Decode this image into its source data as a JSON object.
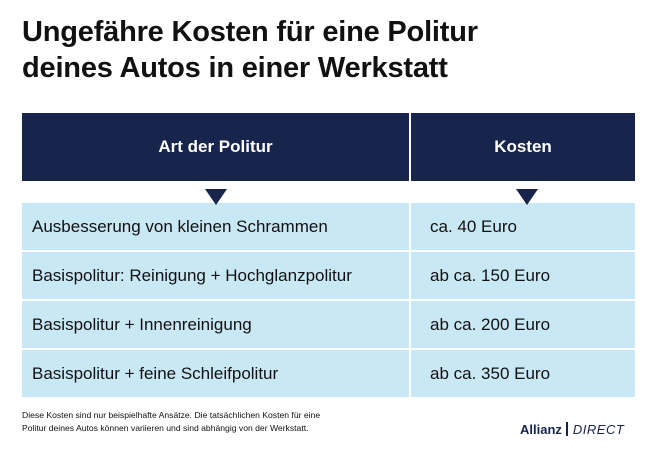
{
  "title": {
    "line1": "Ungefähre Kosten für eine Politur",
    "line2": "deines Autos in einer Werkstatt"
  },
  "table": {
    "headers": [
      "Art der Politur",
      "Kosten"
    ],
    "rows": [
      {
        "art": "Ausbesserung von kleinen Schrammen",
        "kosten": "ca. 40 Euro"
      },
      {
        "art": "Basispolitur: Reinigung + Hochglanzpolitur",
        "kosten": "ab ca. 150 Euro"
      },
      {
        "art": "Basispolitur + Innenreinigung",
        "kosten": "ab ca. 200 Euro"
      },
      {
        "art": "Basispolitur + feine Schleifpolitur",
        "kosten": "ab ca. 350 Euro"
      }
    ]
  },
  "footnote": {
    "line1": "Diese Kosten sind nur beispielhafte Ansätze. Die tatsächlichen Kosten für eine",
    "line2": "Politur deines Autos können variieren und sind abhängig von der Werkstatt."
  },
  "brand": {
    "name": "Allianz",
    "sub": "DIRECT"
  },
  "colors": {
    "header_bg": "#17254d",
    "row_bg": "#c9e8f6"
  }
}
